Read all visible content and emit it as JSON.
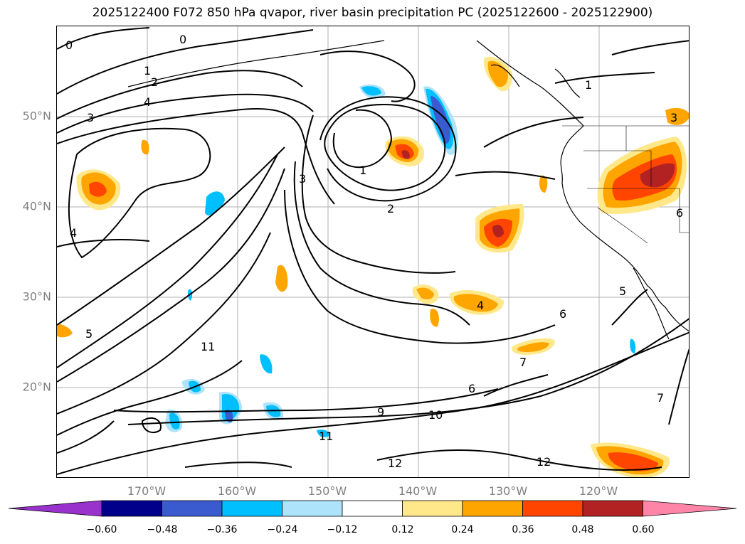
{
  "title": "2025122400 F072 850 hPa qvapor, river basin precipitation PC (2025122600 - 2025122900)",
  "lat_labels": [
    "50°N",
    "40°N",
    "30°N",
    "20°N"
  ],
  "lon_labels": [
    "170°W",
    "160°W",
    "150°W",
    "140°W",
    "130°W",
    "120°W"
  ],
  "contour_labels": [
    "0",
    "0",
    "1",
    "2",
    "3",
    "4",
    "1",
    "2",
    "3",
    "4",
    "5",
    "6",
    "7",
    "9",
    "10",
    "11",
    "11",
    "12",
    "12",
    "4",
    "5",
    "6",
    "1",
    "3",
    "6",
    "7"
  ],
  "colorbar": {
    "ticks": [
      "−0.60",
      "−0.48",
      "−0.36",
      "−0.24",
      "−0.12",
      "0.12",
      "0.24",
      "0.36",
      "0.48",
      "0.60"
    ],
    "colors": [
      "#9932cc",
      "#00008b",
      "#3a5ad0",
      "#00bfff",
      "#aee4fb",
      "#ffffff",
      "#ffe88a",
      "#ffa500",
      "#ff4500",
      "#b22222",
      "#ff85a8"
    ]
  }
}
